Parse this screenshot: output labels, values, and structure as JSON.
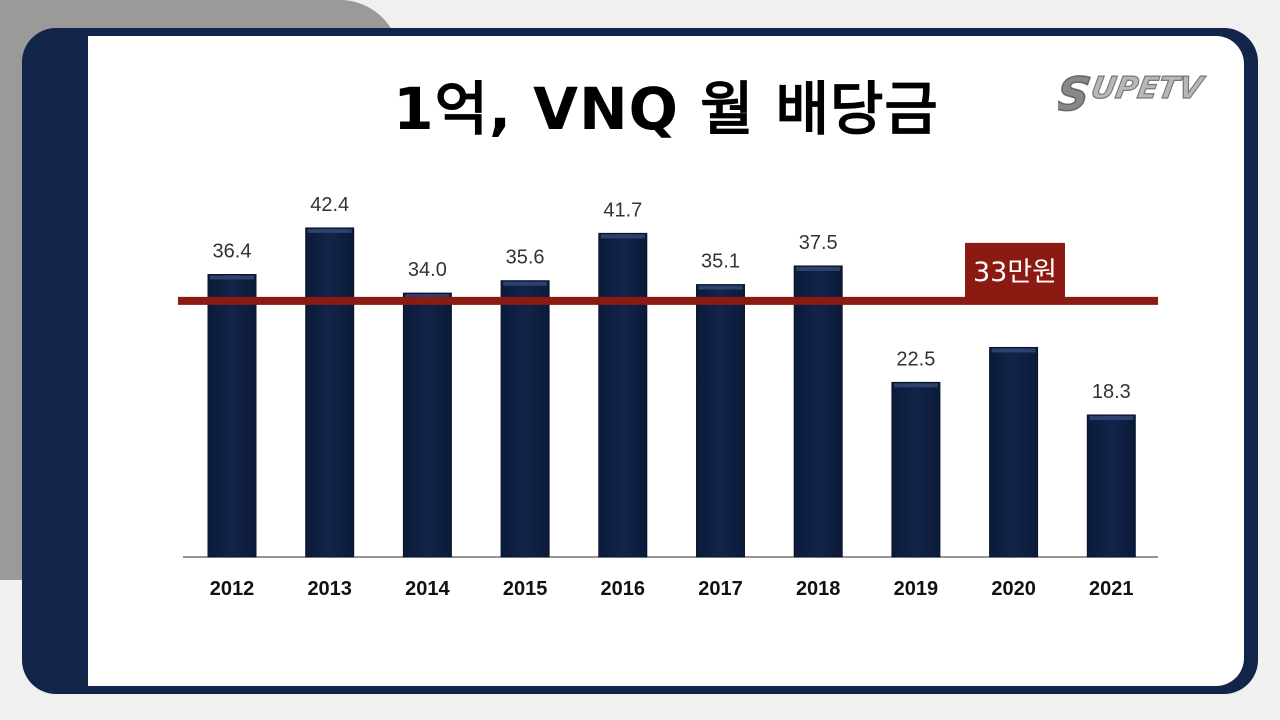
{
  "title": "1억, VNQ 월 배당금",
  "logo": {
    "text": "SUPETV"
  },
  "chart_data": {
    "type": "bar",
    "categories": [
      "2012",
      "2013",
      "2014",
      "2015",
      "2016",
      "2017",
      "2018",
      "2019",
      "2020",
      "2021"
    ],
    "values": [
      36.4,
      42.4,
      34.0,
      35.6,
      41.7,
      35.1,
      37.5,
      22.5,
      27.0,
      18.3
    ],
    "value_labels": [
      "36.4",
      "42.4",
      "34.0",
      "35.6",
      "41.7",
      "35.1",
      "37.5",
      "22.5",
      "",
      "18.3"
    ],
    "ylim": [
      0,
      46
    ],
    "xlabel": "",
    "ylabel": "",
    "grid": false,
    "bar_color": "#12244a",
    "reference_line": {
      "value": 33,
      "label": "33만원",
      "color": "#8b1a12"
    }
  }
}
